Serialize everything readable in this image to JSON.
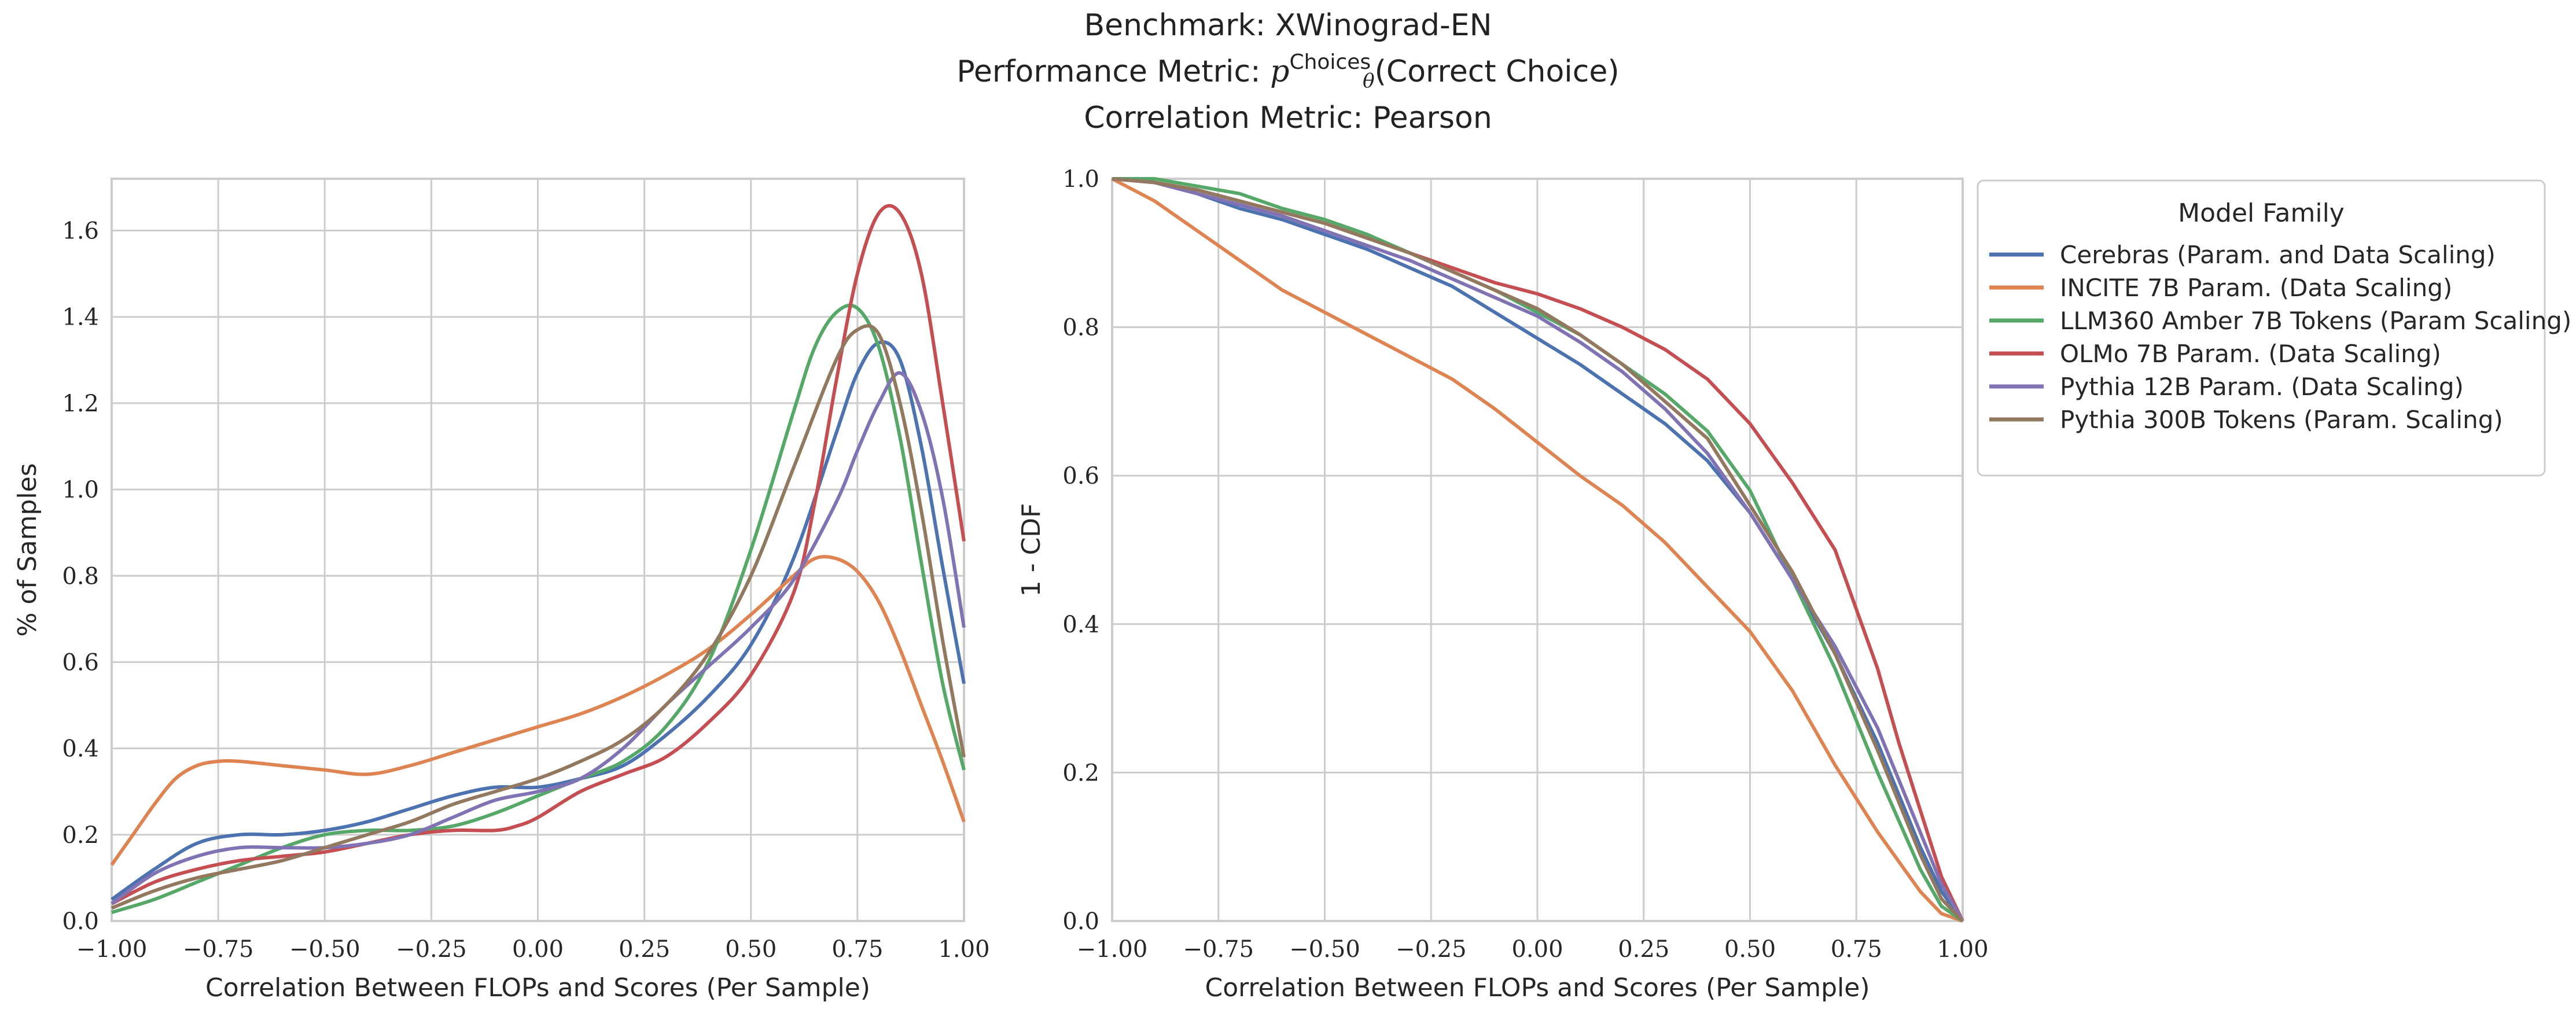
{
  "title": {
    "line1": "Benchmark: XWinograd-EN",
    "line2_prefix": "Performance Metric: ",
    "line2_p": "p",
    "line2_sup": "Choices",
    "line2_sub": "θ",
    "line2_suffix": "(Correct Choice)",
    "line3": "Correlation Metric: Pearson"
  },
  "colors": {
    "Cerebras": "#4c72b0",
    "INCITE": "#dd8452",
    "LLM360": "#55a868",
    "OLMo": "#c44e52",
    "Pythia12B": "#8172b3",
    "Pythia300B": "#937860"
  },
  "chart_data": [
    {
      "type": "line",
      "subtype": "kde",
      "xlabel": "Correlation Between FLOPs and Scores (Per Sample)",
      "ylabel": "% of Samples",
      "xlim": [
        -1.0,
        1.0
      ],
      "ylim": [
        0.0,
        1.72
      ],
      "xticks": [
        "−1.00",
        "−0.75",
        "−0.50",
        "−0.25",
        "0.00",
        "0.25",
        "0.50",
        "0.75",
        "1.00"
      ],
      "yticks": [
        "0.0",
        "0.2",
        "0.4",
        "0.6",
        "0.8",
        "1.0",
        "1.2",
        "1.4",
        "1.6"
      ],
      "grid": true,
      "series": [
        {
          "name": "Cerebras (Param. and Data Scaling)",
          "key": "Cerebras",
          "x": [
            -1.0,
            -0.9,
            -0.8,
            -0.7,
            -0.6,
            -0.5,
            -0.4,
            -0.3,
            -0.2,
            -0.1,
            0.0,
            0.1,
            0.2,
            0.3,
            0.4,
            0.5,
            0.6,
            0.7,
            0.75,
            0.8,
            0.85,
            0.9,
            0.95,
            1.0
          ],
          "y": [
            0.05,
            0.12,
            0.18,
            0.2,
            0.2,
            0.21,
            0.23,
            0.26,
            0.29,
            0.31,
            0.31,
            0.33,
            0.36,
            0.43,
            0.52,
            0.64,
            0.84,
            1.13,
            1.27,
            1.34,
            1.3,
            1.1,
            0.82,
            0.55
          ]
        },
        {
          "name": "INCITE 7B Param. (Data Scaling)",
          "key": "INCITE",
          "x": [
            -1.0,
            -0.95,
            -0.9,
            -0.85,
            -0.8,
            -0.75,
            -0.7,
            -0.6,
            -0.5,
            -0.4,
            -0.3,
            -0.2,
            -0.1,
            0.0,
            0.1,
            0.2,
            0.3,
            0.4,
            0.5,
            0.6,
            0.65,
            0.7,
            0.75,
            0.8,
            0.85,
            0.9,
            0.95,
            1.0
          ],
          "y": [
            0.13,
            0.2,
            0.27,
            0.33,
            0.36,
            0.37,
            0.37,
            0.36,
            0.35,
            0.34,
            0.36,
            0.39,
            0.42,
            0.45,
            0.48,
            0.52,
            0.57,
            0.63,
            0.71,
            0.8,
            0.84,
            0.84,
            0.81,
            0.74,
            0.63,
            0.5,
            0.37,
            0.23
          ]
        },
        {
          "name": "LLM360 Amber 7B Tokens (Param Scaling)",
          "key": "LLM360",
          "x": [
            -1.0,
            -0.9,
            -0.8,
            -0.7,
            -0.6,
            -0.5,
            -0.4,
            -0.3,
            -0.2,
            -0.1,
            0.0,
            0.1,
            0.2,
            0.3,
            0.4,
            0.5,
            0.6,
            0.65,
            0.7,
            0.75,
            0.8,
            0.85,
            0.9,
            0.95,
            1.0
          ],
          "y": [
            0.02,
            0.05,
            0.09,
            0.13,
            0.17,
            0.2,
            0.21,
            0.21,
            0.22,
            0.25,
            0.29,
            0.33,
            0.37,
            0.45,
            0.6,
            0.86,
            1.18,
            1.33,
            1.41,
            1.42,
            1.33,
            1.12,
            0.83,
            0.55,
            0.35
          ]
        },
        {
          "name": "OLMo 7B Param. (Data Scaling)",
          "key": "OLMo",
          "x": [
            -1.0,
            -0.9,
            -0.8,
            -0.7,
            -0.6,
            -0.5,
            -0.4,
            -0.3,
            -0.2,
            -0.1,
            -0.05,
            0.0,
            0.1,
            0.2,
            0.3,
            0.4,
            0.5,
            0.6,
            0.65,
            0.7,
            0.75,
            0.8,
            0.85,
            0.9,
            0.95,
            1.0
          ],
          "y": [
            0.04,
            0.09,
            0.12,
            0.14,
            0.15,
            0.16,
            0.18,
            0.2,
            0.21,
            0.21,
            0.22,
            0.24,
            0.3,
            0.34,
            0.38,
            0.46,
            0.57,
            0.76,
            0.97,
            1.25,
            1.5,
            1.64,
            1.64,
            1.5,
            1.2,
            0.88
          ]
        },
        {
          "name": "Pythia 12B Param. (Data Scaling)",
          "key": "Pythia12B",
          "x": [
            -1.0,
            -0.9,
            -0.8,
            -0.7,
            -0.6,
            -0.5,
            -0.4,
            -0.3,
            -0.2,
            -0.1,
            0.0,
            0.1,
            0.2,
            0.3,
            0.4,
            0.5,
            0.6,
            0.7,
            0.75,
            0.8,
            0.85,
            0.9,
            0.95,
            1.0
          ],
          "y": [
            0.04,
            0.11,
            0.15,
            0.17,
            0.17,
            0.17,
            0.18,
            0.2,
            0.24,
            0.28,
            0.3,
            0.33,
            0.4,
            0.5,
            0.59,
            0.68,
            0.79,
            0.97,
            1.09,
            1.2,
            1.27,
            1.18,
            0.98,
            0.68
          ]
        },
        {
          "name": "Pythia 300B Tokens (Param. Scaling)",
          "key": "Pythia300B",
          "x": [
            -1.0,
            -0.9,
            -0.8,
            -0.7,
            -0.6,
            -0.5,
            -0.4,
            -0.3,
            -0.2,
            -0.1,
            0.0,
            0.1,
            0.2,
            0.3,
            0.4,
            0.5,
            0.6,
            0.7,
            0.75,
            0.8,
            0.85,
            0.9,
            0.95,
            1.0
          ],
          "y": [
            0.03,
            0.07,
            0.1,
            0.12,
            0.14,
            0.17,
            0.2,
            0.23,
            0.27,
            0.3,
            0.33,
            0.37,
            0.42,
            0.5,
            0.62,
            0.8,
            1.05,
            1.3,
            1.37,
            1.36,
            1.2,
            0.95,
            0.65,
            0.38
          ]
        }
      ]
    },
    {
      "type": "line",
      "subtype": "survival",
      "xlabel": "Correlation Between FLOPs and Scores (Per Sample)",
      "ylabel": "1 - CDF",
      "xlim": [
        -1.0,
        1.0
      ],
      "ylim": [
        0.0,
        1.0
      ],
      "xticks": [
        "−1.00",
        "−0.75",
        "−0.50",
        "−0.25",
        "0.00",
        "0.25",
        "0.50",
        "0.75",
        "1.00"
      ],
      "yticks": [
        "0.0",
        "0.2",
        "0.4",
        "0.6",
        "0.8",
        "1.0"
      ],
      "grid": true,
      "legend": {
        "title": "Model Family",
        "placement": "outside-right-top"
      },
      "series": [
        {
          "name": "Cerebras (Param. and Data Scaling)",
          "key": "Cerebras",
          "x": [
            -1.0,
            -0.9,
            -0.8,
            -0.7,
            -0.6,
            -0.5,
            -0.4,
            -0.3,
            -0.2,
            -0.1,
            0.0,
            0.1,
            0.2,
            0.3,
            0.4,
            0.5,
            0.6,
            0.7,
            0.8,
            0.9,
            0.95,
            1.0
          ],
          "y": [
            1.0,
            0.995,
            0.98,
            0.96,
            0.945,
            0.925,
            0.905,
            0.88,
            0.855,
            0.82,
            0.785,
            0.75,
            0.71,
            0.67,
            0.62,
            0.55,
            0.46,
            0.36,
            0.24,
            0.1,
            0.04,
            0.0
          ]
        },
        {
          "name": "INCITE 7B Param. (Data Scaling)",
          "key": "INCITE",
          "x": [
            -1.0,
            -0.9,
            -0.8,
            -0.7,
            -0.6,
            -0.5,
            -0.4,
            -0.3,
            -0.2,
            -0.1,
            0.0,
            0.1,
            0.2,
            0.3,
            0.4,
            0.5,
            0.6,
            0.7,
            0.8,
            0.9,
            0.95,
            1.0
          ],
          "y": [
            1.0,
            0.97,
            0.93,
            0.89,
            0.85,
            0.82,
            0.79,
            0.76,
            0.73,
            0.69,
            0.645,
            0.6,
            0.56,
            0.51,
            0.45,
            0.39,
            0.31,
            0.21,
            0.12,
            0.04,
            0.01,
            0.0
          ]
        },
        {
          "name": "LLM360 Amber 7B Tokens (Param Scaling)",
          "key": "LLM360",
          "x": [
            -1.0,
            -0.9,
            -0.8,
            -0.7,
            -0.6,
            -0.5,
            -0.4,
            -0.3,
            -0.2,
            -0.1,
            0.0,
            0.1,
            0.2,
            0.3,
            0.4,
            0.5,
            0.6,
            0.7,
            0.8,
            0.9,
            0.95,
            1.0
          ],
          "y": [
            1.0,
            1.0,
            0.99,
            0.98,
            0.96,
            0.945,
            0.925,
            0.9,
            0.875,
            0.85,
            0.82,
            0.79,
            0.75,
            0.71,
            0.66,
            0.58,
            0.46,
            0.34,
            0.2,
            0.07,
            0.02,
            0.0
          ]
        },
        {
          "name": "OLMo 7B Param. (Data Scaling)",
          "key": "OLMo",
          "x": [
            -1.0,
            -0.9,
            -0.8,
            -0.7,
            -0.6,
            -0.5,
            -0.4,
            -0.3,
            -0.2,
            -0.1,
            0.0,
            0.1,
            0.2,
            0.3,
            0.4,
            0.5,
            0.6,
            0.7,
            0.8,
            0.85,
            0.9,
            0.95,
            1.0
          ],
          "y": [
            1.0,
            0.995,
            0.985,
            0.97,
            0.955,
            0.94,
            0.92,
            0.9,
            0.88,
            0.86,
            0.845,
            0.825,
            0.8,
            0.77,
            0.73,
            0.67,
            0.59,
            0.5,
            0.34,
            0.24,
            0.15,
            0.06,
            0.0
          ]
        },
        {
          "name": "Pythia 12B Param. (Data Scaling)",
          "key": "Pythia12B",
          "x": [
            -1.0,
            -0.9,
            -0.8,
            -0.7,
            -0.6,
            -0.5,
            -0.4,
            -0.3,
            -0.2,
            -0.1,
            0.0,
            0.1,
            0.2,
            0.3,
            0.4,
            0.5,
            0.6,
            0.7,
            0.8,
            0.9,
            0.95,
            1.0
          ],
          "y": [
            1.0,
            0.995,
            0.98,
            0.965,
            0.95,
            0.93,
            0.91,
            0.89,
            0.865,
            0.84,
            0.815,
            0.78,
            0.74,
            0.69,
            0.63,
            0.55,
            0.46,
            0.37,
            0.26,
            0.12,
            0.05,
            0.0
          ]
        },
        {
          "name": "Pythia 300B Tokens (Param. Scaling)",
          "key": "Pythia300B",
          "x": [
            -1.0,
            -0.9,
            -0.8,
            -0.7,
            -0.6,
            -0.5,
            -0.4,
            -0.3,
            -0.2,
            -0.1,
            0.0,
            0.1,
            0.2,
            0.3,
            0.4,
            0.5,
            0.6,
            0.7,
            0.8,
            0.9,
            0.95,
            1.0
          ],
          "y": [
            1.0,
            0.995,
            0.985,
            0.97,
            0.955,
            0.94,
            0.92,
            0.9,
            0.875,
            0.85,
            0.825,
            0.79,
            0.75,
            0.7,
            0.65,
            0.56,
            0.47,
            0.36,
            0.23,
            0.09,
            0.03,
            0.0
          ]
        }
      ]
    }
  ]
}
